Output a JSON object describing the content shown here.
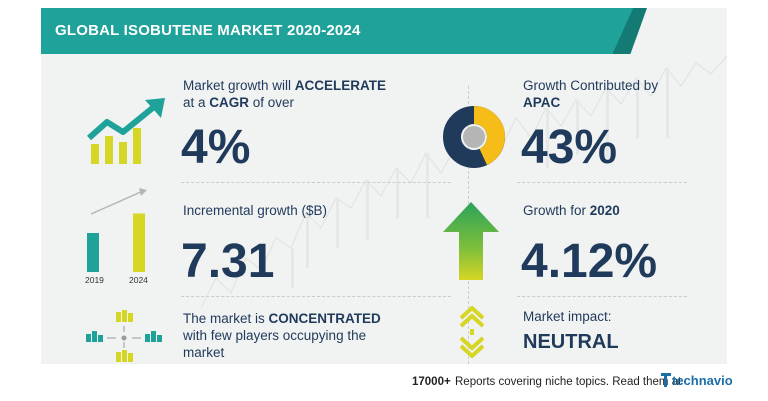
{
  "title": "GLOBAL ISOBUTENE MARKET 2020-2024",
  "growth": {
    "line1_prefix": "Market growth will ",
    "line1_emph": "ACCELERATE",
    "line2_prefix": "at a ",
    "line2_emph": "CAGR",
    "line2_suffix": " of over",
    "value": "4%"
  },
  "incremental": {
    "label": "Incremental growth ($B)",
    "value": "7.31",
    "bars": [
      {
        "label": "2019",
        "level": 0.5
      },
      {
        "label": "2024",
        "level": 0.75
      }
    ]
  },
  "concentration": {
    "line1_prefix": "The market is ",
    "line1_emph": "CONCENTRATED",
    "line2": "with few players occupying the",
    "line3": "market"
  },
  "region": {
    "line1": "Growth Contributed by",
    "line2": "APAC",
    "value": "43%",
    "share": 0.43
  },
  "yoy": {
    "prefix": "Growth for ",
    "year": "2020",
    "value": "4.12%"
  },
  "impact": {
    "label": "Market impact:",
    "value": "NEUTRAL"
  },
  "footer": {
    "count": "17000+",
    "text": "Reports covering niche topics. Read them at",
    "brand": "technavio"
  },
  "colors": {
    "teal": "#1fa29a",
    "dark_teal": "#137a74",
    "navy": "#1f3a5a",
    "yellow": "#d6d624",
    "gold": "#f6bd18",
    "gray": "#b5b5b5",
    "green": "#2aa35a"
  }
}
